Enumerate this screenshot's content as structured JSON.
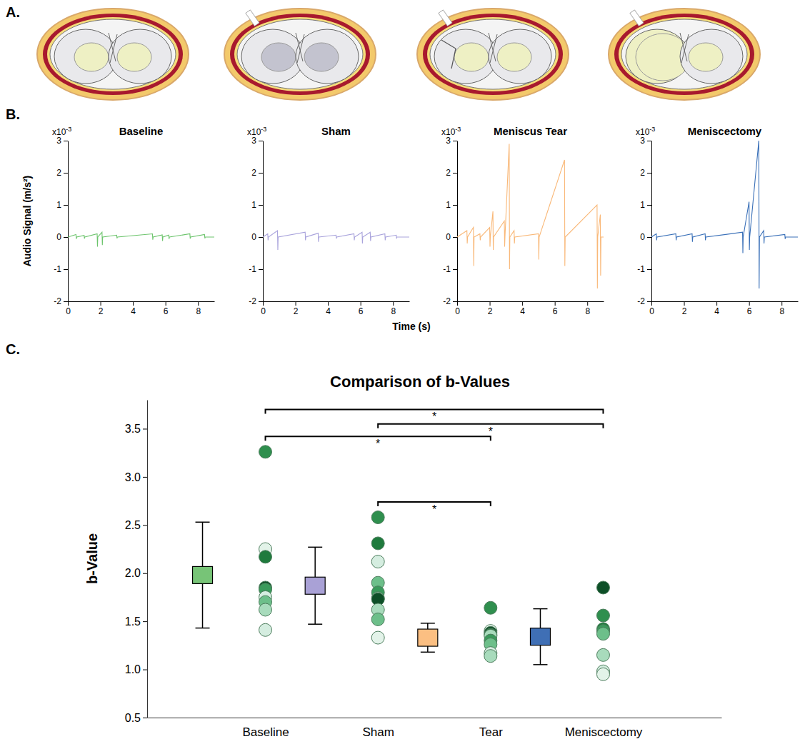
{
  "diagram": {
    "panel_label": "A."
  },
  "chart_data": [
    {
      "type": "line",
      "panel_label": "B.",
      "title": "Baseline",
      "y_label": "Audio Signal (m/s²)",
      "annotation": {
        "base": "x10",
        "exponent": "-3"
      },
      "color": "#6cc46c",
      "x": [
        0,
        0.5,
        0.52,
        0.54,
        1,
        1.02,
        1.04,
        1.8,
        1.82,
        1.84,
        2.1,
        2.12,
        2.14,
        3,
        3.02,
        3.04,
        5.2,
        5.22,
        5.24,
        5.8,
        5.82,
        5.84,
        6.2,
        6.22,
        6.24,
        7.5,
        7.52,
        7.54,
        8.4,
        8.42,
        8.44,
        9
      ],
      "values": [
        0,
        0.08,
        -0.06,
        0,
        0.05,
        -0.05,
        0,
        0.1,
        -0.3,
        0,
        0.15,
        -0.25,
        0,
        0.06,
        -0.04,
        0,
        0.1,
        -0.08,
        0,
        0.07,
        -0.12,
        0,
        0.06,
        -0.06,
        0,
        0.1,
        -0.05,
        0,
        0.08,
        -0.04,
        0,
        0
      ],
      "xlim": [
        0,
        9
      ],
      "xticks": [
        0,
        2,
        4,
        6,
        8
      ],
      "ylim": [
        -2,
        3
      ],
      "yticks": [
        -2,
        -1,
        0,
        1,
        2,
        3
      ]
    },
    {
      "type": "line",
      "title": "Sham",
      "x_label": "Time (s)",
      "annotation": {
        "base": "x10",
        "exponent": "-3"
      },
      "color": "#a9a3dc",
      "x": [
        0,
        0.3,
        0.32,
        0.34,
        0.9,
        0.92,
        0.94,
        2.6,
        2.62,
        2.64,
        3.4,
        3.42,
        3.44,
        4.5,
        4.52,
        4.54,
        5.6,
        5.62,
        5.64,
        6.1,
        6.12,
        6.14,
        6.6,
        6.62,
        6.64,
        7.5,
        7.52,
        7.54,
        8.2,
        8.22,
        8.24,
        9
      ],
      "values": [
        0,
        0.1,
        -0.1,
        0,
        0.2,
        -0.4,
        0,
        0.15,
        -0.1,
        0,
        0.12,
        -0.15,
        0,
        0.06,
        -0.05,
        0,
        0.1,
        -0.1,
        0,
        0.15,
        -0.2,
        0,
        0.15,
        -0.12,
        0,
        0.1,
        -0.1,
        0,
        0.06,
        -0.05,
        0,
        0
      ],
      "xlim": [
        0,
        9
      ],
      "xticks": [
        0,
        2,
        4,
        6,
        8
      ],
      "ylim": [
        -2,
        3
      ],
      "yticks": [
        -2,
        -1,
        0,
        1,
        2,
        3
      ]
    },
    {
      "type": "line",
      "title": "Meniscus Tear",
      "annotation": {
        "base": "x10",
        "exponent": "-3"
      },
      "color": "#f9b878",
      "x": [
        0,
        0.6,
        0.62,
        0.64,
        1,
        1.02,
        1.04,
        1.4,
        1.42,
        1.44,
        2,
        2.02,
        2.04,
        2.2,
        2.22,
        2.24,
        2.9,
        2.92,
        2.94,
        3.2,
        3.22,
        3.24,
        3.5,
        3.52,
        3.54,
        5,
        5.02,
        5.04,
        6.6,
        6.62,
        6.64,
        8.6,
        8.62,
        8.64,
        8.8,
        8.82,
        8.84,
        9
      ],
      "values": [
        0,
        0.2,
        -0.2,
        0,
        0.3,
        -0.9,
        0,
        0.1,
        -0.1,
        0,
        0.3,
        -0.3,
        0,
        0.8,
        -0.4,
        0,
        0.5,
        -0.3,
        0,
        2.9,
        -1,
        0,
        0.2,
        -0.2,
        0,
        0.1,
        -0.7,
        0,
        2.4,
        -0.9,
        0,
        1,
        -1.6,
        0,
        0.7,
        -1.2,
        0,
        0
      ],
      "xlim": [
        0,
        9
      ],
      "xticks": [
        0,
        2,
        4,
        6,
        8
      ],
      "ylim": [
        -2,
        3
      ],
      "yticks": [
        -2,
        -1,
        0,
        1,
        2,
        3
      ]
    },
    {
      "type": "line",
      "title": "Meniscectomy",
      "annotation": {
        "base": "x10",
        "exponent": "-3"
      },
      "color": "#3a70b8",
      "x": [
        0,
        0.3,
        0.32,
        0.34,
        1.5,
        1.52,
        1.54,
        2.5,
        2.52,
        2.54,
        3.3,
        3.32,
        3.34,
        5.6,
        5.62,
        5.64,
        6,
        6.02,
        6.04,
        6.6,
        6.62,
        6.64,
        6.9,
        6.92,
        6.94,
        8.2,
        8.22,
        8.24,
        9
      ],
      "values": [
        0,
        0.1,
        -0.1,
        0,
        0.1,
        -0.1,
        0,
        0.1,
        -0.15,
        0,
        0.1,
        -0.1,
        0,
        0.15,
        -0.5,
        0,
        1.1,
        -0.4,
        0,
        3,
        -1.6,
        0,
        0.2,
        -0.2,
        0,
        0.08,
        -0.06,
        0,
        0
      ],
      "xlim": [
        0,
        9
      ],
      "xticks": [
        0,
        2,
        4,
        6,
        8
      ],
      "ylim": [
        -2,
        3
      ],
      "yticks": [
        -2,
        -1,
        0,
        1,
        2,
        3
      ]
    },
    {
      "type": "errorbar",
      "panel_label": "C.",
      "title": "Comparison of b-Values",
      "y_label": "b-Value",
      "categories": [
        "Baseline",
        "Sham",
        "Tear",
        "Meniscectomy"
      ],
      "values": [
        1.98,
        1.87,
        1.33,
        1.34
      ],
      "errors": [
        0.55,
        0.4,
        0.15,
        0.29
      ],
      "colors": [
        "#77c477",
        "#a9a1d6",
        "#fbbf82",
        "#3f6fb5"
      ],
      "points": [
        {
          "values": [
            3.26,
            2.25,
            2.17,
            1.85,
            1.83,
            1.75,
            1.7,
            1.62,
            1.41
          ],
          "colors": [
            "#2f8f4e",
            "#e3f3e9",
            "#1f7a3d",
            "#0d4f27",
            "#3a9a5b",
            "#d5ede0",
            "#6dbf8a",
            "#a8dbbc",
            "#d5ede0"
          ]
        },
        {
          "values": [
            2.58,
            2.31,
            2.12,
            1.9,
            1.8,
            1.74,
            1.73,
            1.62,
            1.52,
            1.33
          ],
          "colors": [
            "#2f8f4e",
            "#1f7a3d",
            "#d5ede0",
            "#6dbf8a",
            "#3a9a5b",
            "#a8dbbc",
            "#0d4f27",
            "#a8dbbc",
            "#6dbf8a",
            "#e3f3e9"
          ]
        },
        {
          "values": [
            1.64,
            1.4,
            1.38,
            1.36,
            1.35,
            1.3,
            1.26,
            1.17,
            1.14
          ],
          "colors": [
            "#2f8f4e",
            "#e3f3e9",
            "#0d4f27",
            "#1f7a3d",
            "#a8dbbc",
            "#3a9a5b",
            "#6dbf8a",
            "#d5ede0",
            "#a8dbbc"
          ]
        },
        {
          "values": [
            1.85,
            1.56,
            1.42,
            1.4,
            1.37,
            1.15,
            0.98,
            0.95
          ],
          "colors": [
            "#0d4f27",
            "#2f8f4e",
            "#1f7a3d",
            "#3a9a5b",
            "#6dbf8a",
            "#a8dbbc",
            "#d5ede0",
            "#e3f3e9"
          ]
        }
      ],
      "annotations": [
        {
          "from": "Baseline",
          "to": "Meniscectomy",
          "y": 3.7,
          "label": "*"
        },
        {
          "from": "Sham",
          "to": "Meniscectomy",
          "y": 3.55,
          "label": "*"
        },
        {
          "from": "Baseline",
          "to": "Tear",
          "y": 3.42,
          "label": "*"
        },
        {
          "from": "Sham",
          "to": "Tear",
          "y": 2.74,
          "label": "*"
        }
      ],
      "ylim": [
        0.5,
        3.8
      ],
      "yticks": [
        0.5,
        {
          "value": 1,
          "label": "1.0"
        },
        1.5,
        {
          "value": 2,
          "label": "2.0"
        },
        2.5,
        {
          "value": 3,
          "label": "3.0"
        },
        3.5
      ]
    }
  ]
}
